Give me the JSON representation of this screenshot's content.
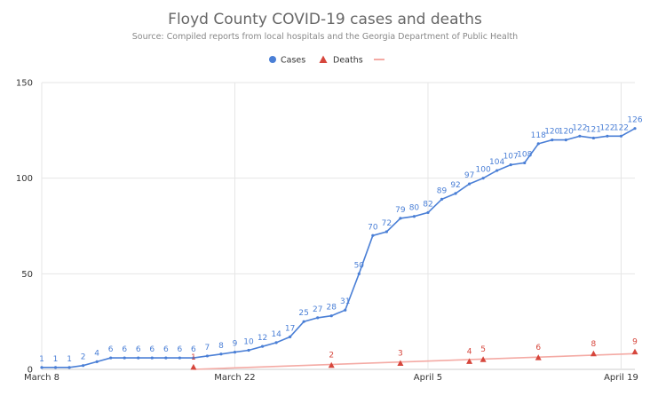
{
  "chart_data": {
    "type": "line",
    "title": "Floyd County COVID-19 cases and deaths",
    "subtitle": "Source: Compiled reports from local hospitals and the Georgia Department of Public Health",
    "xlabel": "",
    "ylabel": "",
    "x_ticks": [
      "March 8",
      "March 22",
      "April 5",
      "April 19"
    ],
    "x_tick_days": [
      0,
      14,
      28,
      42
    ],
    "ylim": [
      0,
      150
    ],
    "y_ticks": [
      0,
      50,
      100,
      150
    ],
    "grid": true,
    "legend_position": "top-center",
    "legend": [
      "Cases",
      "Deaths",
      ""
    ],
    "colors": {
      "cases": "#4a7fd6",
      "deaths": "#d6463c",
      "trend": "#f4aaa4"
    },
    "series": [
      {
        "name": "Cases",
        "x": [
          0,
          1,
          2,
          3,
          4,
          5,
          6,
          7,
          8,
          9,
          10,
          11,
          12,
          13,
          14,
          15,
          16,
          17,
          18,
          19,
          20,
          21,
          22,
          23,
          24,
          25,
          26,
          27,
          28,
          29,
          30,
          31,
          32,
          33,
          34,
          35,
          36,
          37,
          38,
          39,
          40,
          41,
          42,
          43
        ],
        "values": [
          1,
          1,
          1,
          2,
          4,
          6,
          6,
          6,
          6,
          6,
          6,
          6,
          7,
          8,
          9,
          10,
          12,
          14,
          17,
          25,
          27,
          28,
          31,
          50,
          70,
          72,
          79,
          80,
          82,
          89,
          92,
          97,
          100,
          104,
          107,
          108,
          118,
          120,
          120,
          122,
          121,
          122,
          122,
          126
        ],
        "labels": [
          "1",
          "1",
          "1",
          "2",
          "4",
          "6",
          "6",
          "6",
          "6",
          "6",
          "6",
          "6",
          "7",
          "8",
          "9",
          "10",
          "12",
          "14",
          "17",
          "25",
          "27",
          "28",
          "31",
          "50",
          "70",
          "72",
          "79",
          "80",
          "82",
          "89",
          "92",
          "97",
          "100",
          "104",
          "107",
          "108",
          "118",
          "120",
          "120",
          "122",
          "121",
          "122",
          "122",
          "126"
        ]
      },
      {
        "name": "Deaths",
        "x": [
          11,
          21,
          26,
          31,
          32,
          36,
          40,
          43
        ],
        "values": [
          1,
          2,
          3,
          4,
          5,
          6,
          8,
          9
        ],
        "labels": [
          "1",
          "2",
          "3",
          "4",
          "5",
          "6",
          "8",
          "9"
        ]
      },
      {
        "name": "",
        "x": [
          11,
          43
        ],
        "values": [
          0,
          8.2
        ]
      }
    ]
  }
}
